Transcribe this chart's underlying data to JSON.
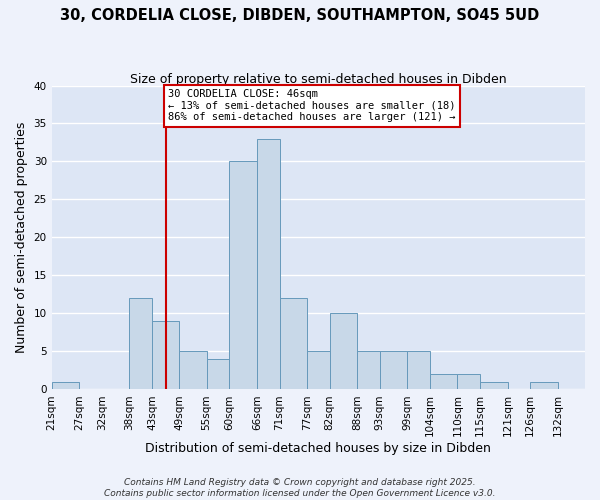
{
  "title": "30, CORDELIA CLOSE, DIBDEN, SOUTHAMPTON, SO45 5UD",
  "subtitle": "Size of property relative to semi-detached houses in Dibden",
  "xlabel": "Distribution of semi-detached houses by size in Dibden",
  "ylabel": "Number of semi-detached properties",
  "bar_edges": [
    21,
    27,
    32,
    38,
    43,
    49,
    55,
    60,
    66,
    71,
    77,
    82,
    88,
    93,
    99,
    104,
    110,
    115,
    121,
    126,
    132,
    138
  ],
  "bar_heights": [
    1,
    0,
    0,
    12,
    9,
    5,
    4,
    30,
    33,
    12,
    5,
    10,
    5,
    5,
    5,
    2,
    2,
    1,
    0,
    1,
    0
  ],
  "bar_color": "#c8d8e8",
  "bar_edge_color": "#6699bb",
  "bar_linewidth": 0.7,
  "red_line_x": 46,
  "red_line_color": "#cc0000",
  "ylim": [
    0,
    40
  ],
  "yticks": [
    0,
    5,
    10,
    15,
    20,
    25,
    30,
    35,
    40
  ],
  "tick_labels": [
    "21sqm",
    "27sqm",
    "32sqm",
    "38sqm",
    "43sqm",
    "49sqm",
    "55sqm",
    "60sqm",
    "66sqm",
    "71sqm",
    "77sqm",
    "82sqm",
    "88sqm",
    "93sqm",
    "99sqm",
    "104sqm",
    "110sqm",
    "115sqm",
    "121sqm",
    "126sqm",
    "132sqm"
  ],
  "annotation_title": "30 CORDELIA CLOSE: 46sqm",
  "annotation_line1": "← 13% of semi-detached houses are smaller (18)",
  "annotation_line2": "86% of semi-detached houses are larger (121) →",
  "annotation_box_color": "#ffffff",
  "annotation_box_edgecolor": "#cc0000",
  "footnote1": "Contains HM Land Registry data © Crown copyright and database right 2025.",
  "footnote2": "Contains public sector information licensed under the Open Government Licence v3.0.",
  "bg_color": "#eef2fb",
  "plot_bg_color": "#dde6f5",
  "grid_color": "#ffffff",
  "title_fontsize": 10.5,
  "subtitle_fontsize": 9,
  "axis_label_fontsize": 9,
  "tick_fontsize": 7.5,
  "footnote_fontsize": 6.5
}
